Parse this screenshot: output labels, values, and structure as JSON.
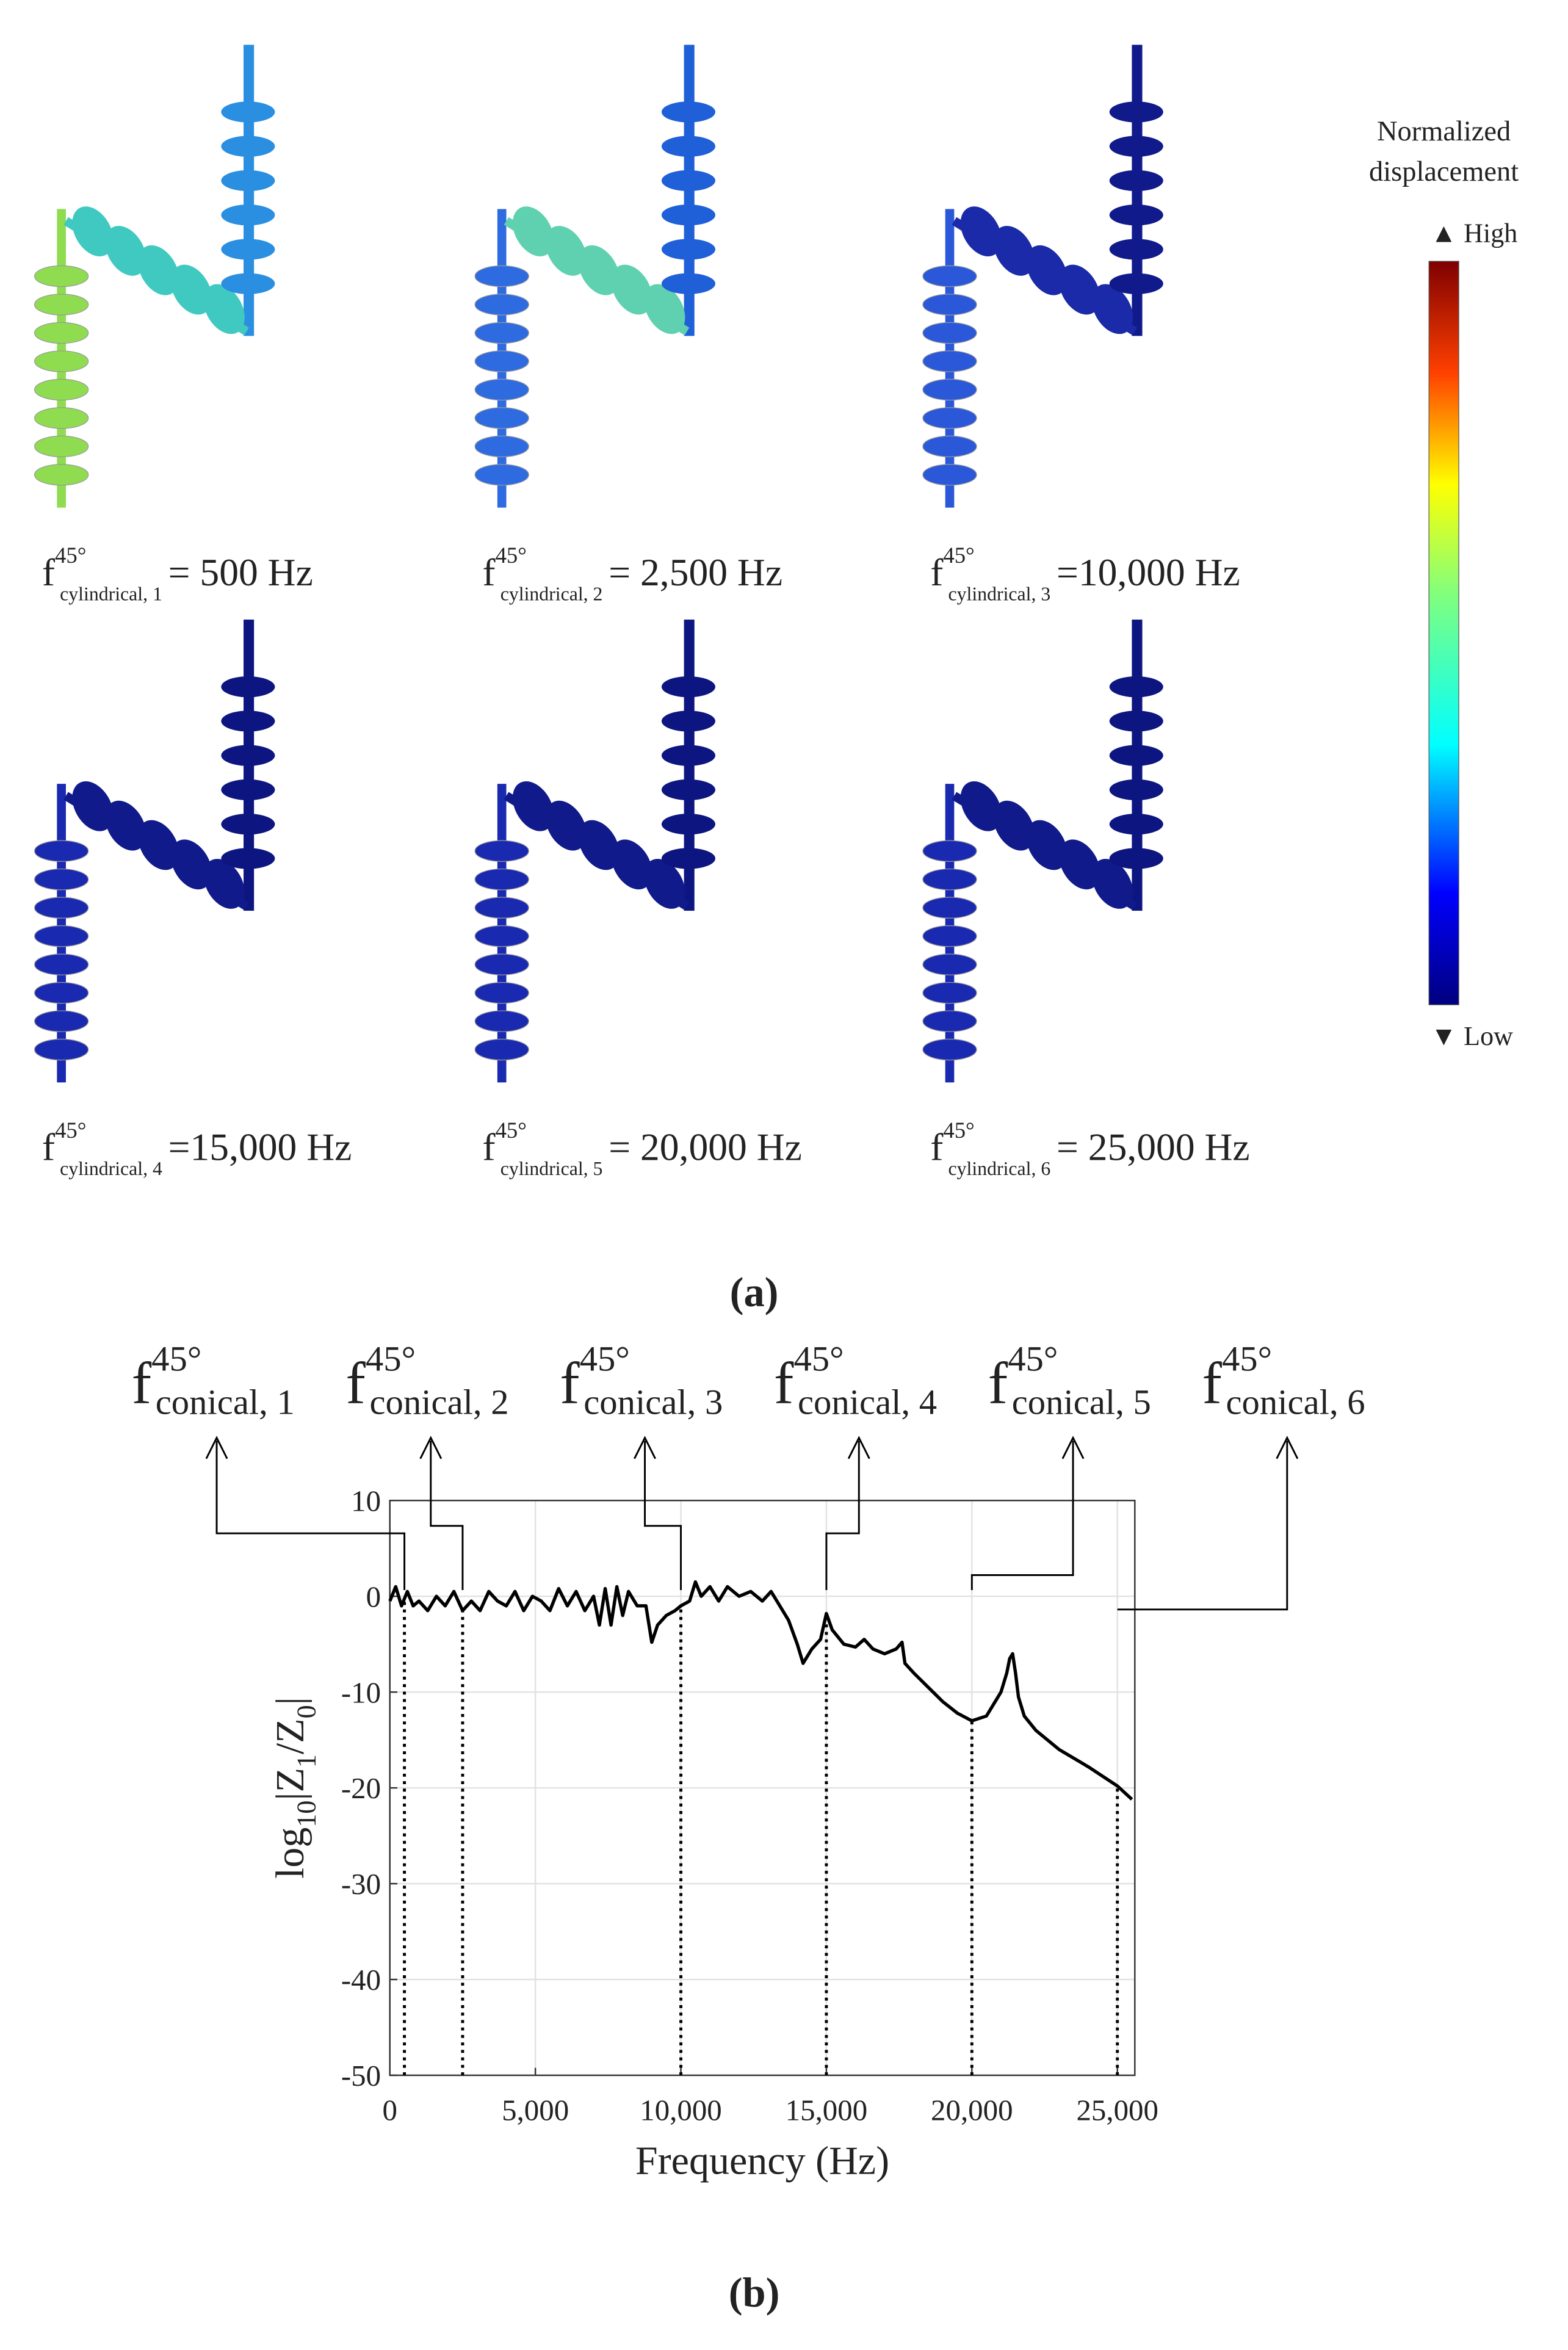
{
  "panel_a": {
    "label": "(a)",
    "modes": [
      {
        "symbol": "f",
        "superscript": "45°",
        "subscript": "cylindrical, 1",
        "value": "= 500 Hz"
      },
      {
        "symbol": "f",
        "superscript": "45°",
        "subscript": "cylindrical, 2",
        "value": "= 2,500 Hz"
      },
      {
        "symbol": "f",
        "superscript": "45°",
        "subscript": "cylindrical, 3",
        "value": "=10,000 Hz"
      },
      {
        "symbol": "f",
        "superscript": "45°",
        "subscript": "cylindrical, 4",
        "value": "=15,000 Hz"
      },
      {
        "symbol": "f",
        "superscript": "45°",
        "subscript": "cylindrical, 5",
        "value": "= 20,000 Hz"
      },
      {
        "symbol": "f",
        "superscript": "45°",
        "subscript": "cylindrical, 6",
        "value": "= 25,000 Hz"
      }
    ],
    "colorbar": {
      "title_lines": [
        "Normalized",
        "displacement"
      ],
      "high": "▲ High",
      "low": "▼ Low"
    }
  },
  "chart_data": {
    "type": "line",
    "panel_label": "(b)",
    "xlabel": "Frequency (Hz)",
    "ylabel_parts": [
      "log",
      "10",
      "|Z",
      "1",
      "/Z",
      "0",
      "|"
    ],
    "xlim": [
      0,
      25600
    ],
    "ylim": [
      -50,
      10
    ],
    "xticks": [
      0,
      {
        "value": 5000,
        "label": "5,000"
      },
      {
        "value": 10000,
        "label": "10,000"
      },
      {
        "value": 15000,
        "label": "15,000"
      },
      {
        "value": 20000,
        "label": "20,000"
      },
      {
        "value": 25000,
        "label": "25,000"
      }
    ],
    "yticks": [
      -50,
      -40,
      -30,
      -20,
      -10,
      0,
      10
    ],
    "grid": true,
    "x": [
      0,
      200,
      400,
      600,
      800,
      1000,
      1300,
      1600,
      1900,
      2200,
      2500,
      2800,
      3100,
      3400,
      3700,
      4000,
      4300,
      4600,
      4900,
      5200,
      5500,
      5800,
      6100,
      6400,
      6700,
      7000,
      7200,
      7400,
      7600,
      7800,
      8000,
      8200,
      8500,
      8800,
      9000,
      9200,
      9500,
      9800,
      10000,
      10300,
      10500,
      10700,
      11000,
      11300,
      11600,
      12000,
      12400,
      12800,
      13100,
      13400,
      13700,
      14000,
      14200,
      14500,
      14800,
      15000,
      15200,
      15600,
      16000,
      16300,
      16600,
      17000,
      17400,
      17600,
      17700,
      18000,
      18500,
      19000,
      19500,
      20000,
      20500,
      20800,
      21000,
      21200,
      21300,
      21400,
      21500,
      21600,
      21800,
      22200,
      23000,
      24000,
      25000,
      25500
    ],
    "series": [
      {
        "color": "#000000",
        "values": [
          -0.5,
          1,
          -1,
          0.5,
          -1,
          -0.5,
          -1.5,
          0,
          -1,
          0.5,
          -1.5,
          -0.5,
          -1.5,
          0.5,
          -0.5,
          -1,
          0.5,
          -1.5,
          0,
          -0.5,
          -1.5,
          0.8,
          -1,
          0.5,
          -1.5,
          0,
          -3,
          0.8,
          -3,
          1,
          -2,
          0.5,
          -1,
          -1,
          -4.8,
          -3,
          -2,
          -1.5,
          -1,
          -0.5,
          1.5,
          0,
          1,
          -0.5,
          1,
          0,
          0.5,
          -0.5,
          0.5,
          -1,
          -2.5,
          -5,
          -7,
          -5.5,
          -4.5,
          -1.8,
          -3.5,
          -5,
          -5.3,
          -4.5,
          -5.5,
          -6,
          -5.5,
          -4.8,
          -7,
          -8,
          -9.5,
          -11,
          -12.2,
          -13,
          -12.5,
          -11,
          -10,
          -8,
          -6.5,
          -6,
          -8,
          -10.5,
          -12.5,
          -14,
          -16,
          -17.8,
          -19.8,
          -21.2
        ]
      }
    ],
    "markers": [
      {
        "x": 500,
        "symbol": "f",
        "superscript": "45°",
        "subscript": "conical, 1"
      },
      {
        "x": 2500,
        "symbol": "f",
        "superscript": "45°",
        "subscript": "conical, 2"
      },
      {
        "x": 10000,
        "symbol": "f",
        "superscript": "45°",
        "subscript": "conical, 3"
      },
      {
        "x": 15000,
        "symbol": "f",
        "superscript": "45°",
        "subscript": "conical, 4"
      },
      {
        "x": 20000,
        "symbol": "f",
        "superscript": "45°",
        "subscript": "conical, 5"
      },
      {
        "x": 25000,
        "symbol": "f",
        "superscript": "45°",
        "subscript": "conical, 6"
      }
    ]
  }
}
